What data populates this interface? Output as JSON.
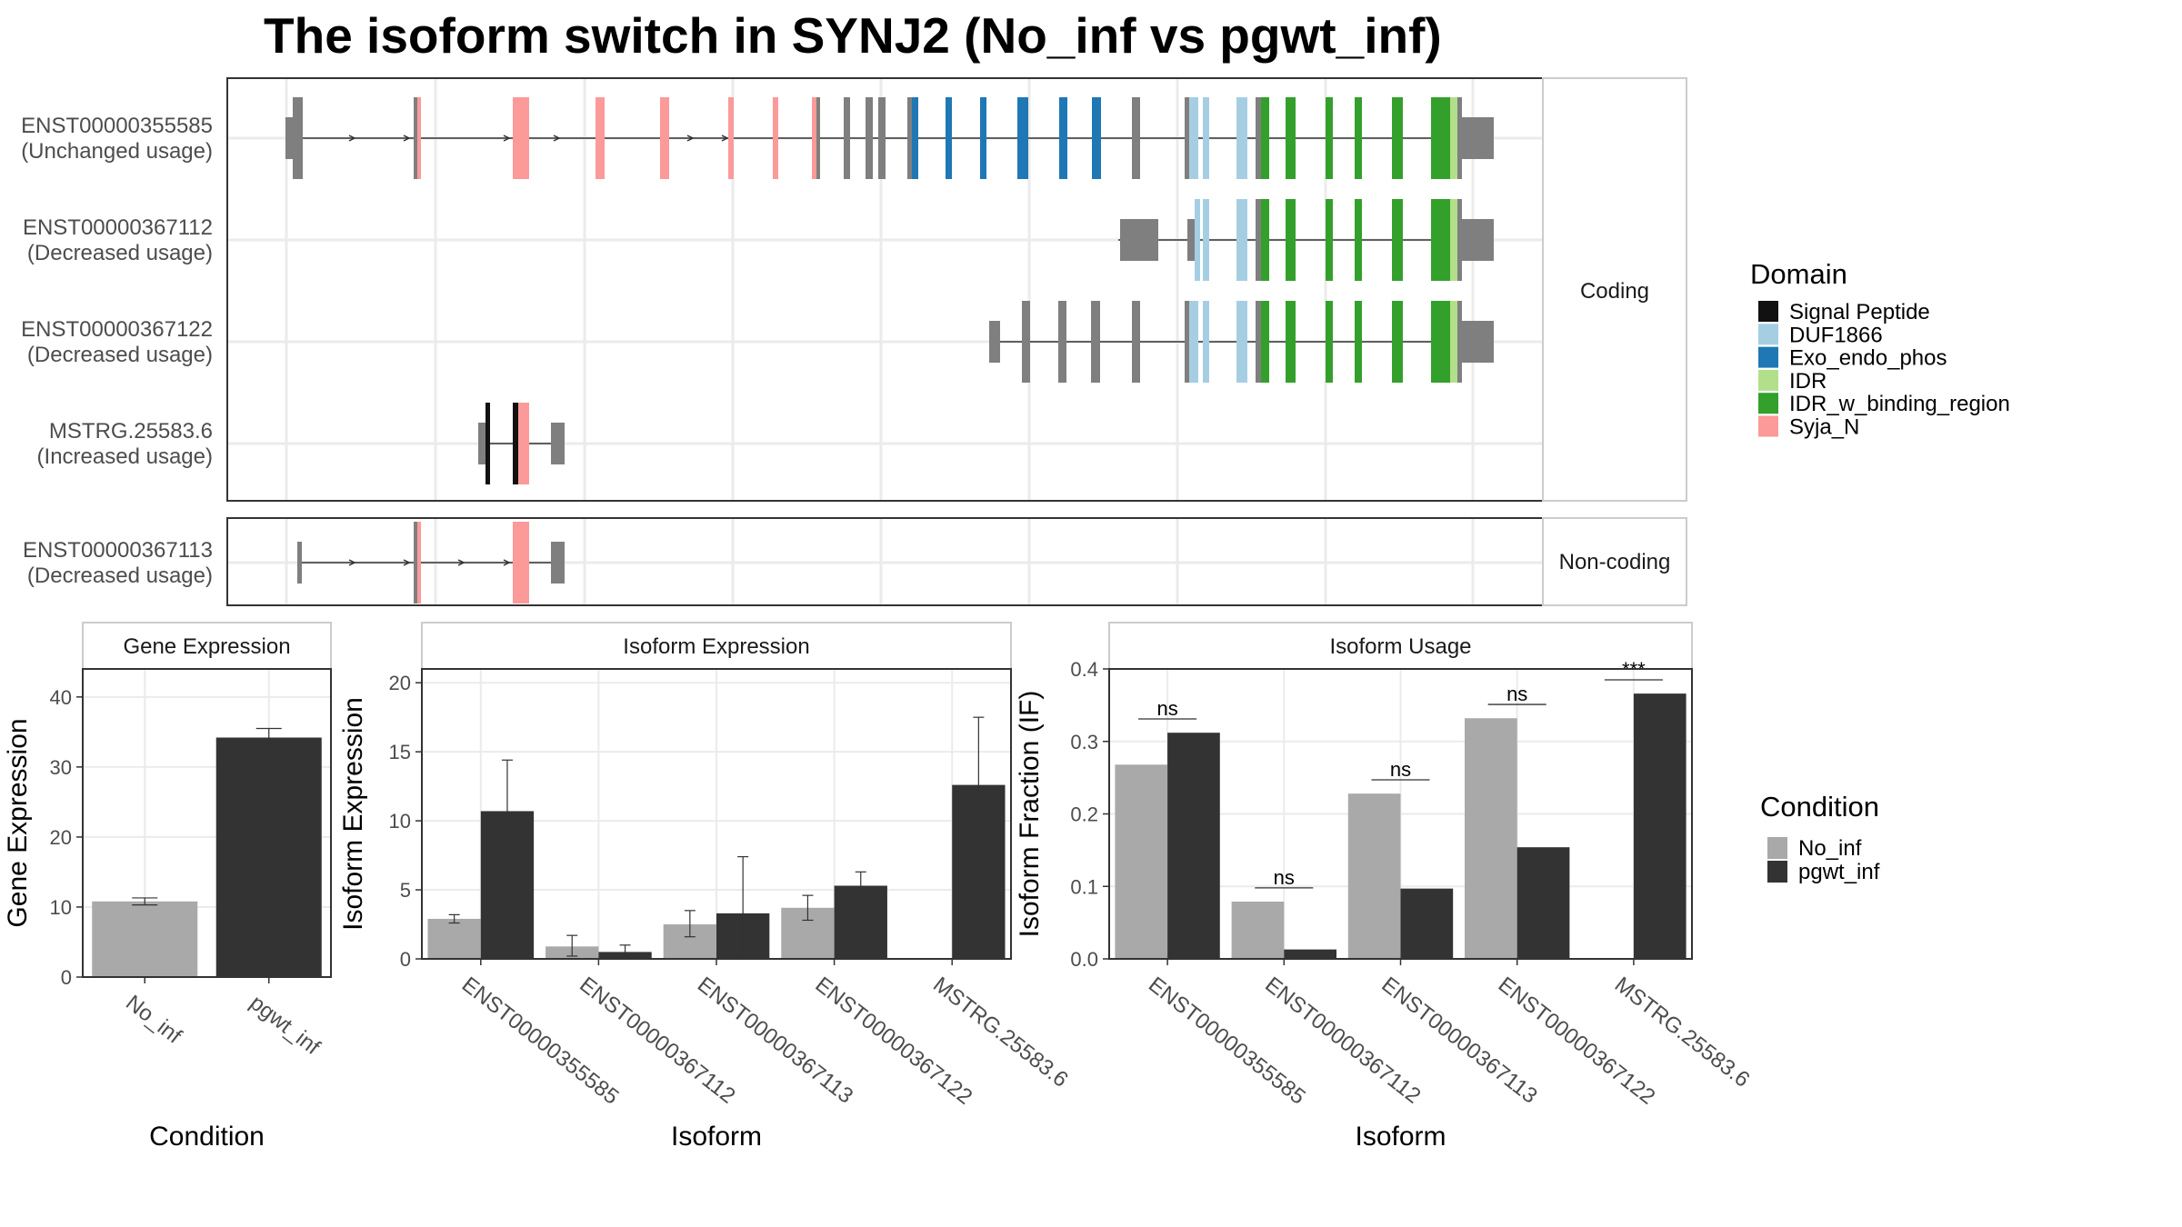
{
  "title": "The isoform switch in SYNJ2 (No_inf vs pgwt_inf)",
  "colors": {
    "intron": "#7f7f7f",
    "utr": "#7f7f7f",
    "signal_peptide": "#111111",
    "duf1866": "#a6cee3",
    "exo_endo_phos": "#1f78b4",
    "idr": "#b2df8a",
    "idr_w_binding_region": "#33a02c",
    "syja_n": "#fb9a99",
    "no_inf": "#a9a9a9",
    "pgwt_inf": "#333333",
    "panel_border": "#333333",
    "strip_border": "#cccccc",
    "grid": "#ebebeb"
  },
  "structure": {
    "coding_panel_label": "Coding",
    "noncoding_panel_label": "Non-coding",
    "coding": [
      {
        "id": "ENST00000355585",
        "usage": "(Unchanged usage)"
      },
      {
        "id": "ENST00000367112",
        "usage": "(Decreased usage)"
      },
      {
        "id": "ENST00000367122",
        "usage": "(Decreased usage)"
      },
      {
        "id": "MSTRG.25583.6",
        "usage": "(Increased usage)"
      }
    ],
    "noncoding": [
      {
        "id": "ENST00000367113",
        "usage": "(Decreased usage)"
      }
    ]
  },
  "legends": {
    "domain_title": "Domain",
    "domain_items": [
      {
        "label": "Signal Peptide",
        "color": "#111111"
      },
      {
        "label": "DUF1866",
        "color": "#a6cee3"
      },
      {
        "label": "Exo_endo_phos",
        "color": "#1f78b4"
      },
      {
        "label": "IDR",
        "color": "#b2df8a"
      },
      {
        "label": "IDR_w_binding_region",
        "color": "#33a02c"
      },
      {
        "label": "Syja_N",
        "color": "#fb9a99"
      }
    ],
    "condition_title": "Condition",
    "condition_items": [
      {
        "label": "No_inf",
        "color": "#a9a9a9"
      },
      {
        "label": "pgwt_inf",
        "color": "#333333"
      }
    ]
  },
  "chart_data": [
    {
      "type": "bar",
      "strip": "Gene Expression",
      "xlabel": "Condition",
      "ylabel": "Gene Expression",
      "ylim": [
        0,
        44
      ],
      "yticks": [
        0,
        10,
        20,
        30,
        40
      ],
      "categories": [
        "No_inf",
        "pgwt_inf"
      ],
      "values": [
        10.8,
        34.2
      ],
      "errors": [
        [
          10.3,
          11.3
        ],
        [
          32.8,
          35.5
        ]
      ]
    },
    {
      "type": "bar",
      "strip": "Isoform Expression",
      "xlabel": "Isoform",
      "ylabel": "Isoform Expression",
      "ylim": [
        0,
        21
      ],
      "yticks": [
        0,
        5,
        10,
        15,
        20
      ],
      "categories": [
        "ENST00000355585",
        "ENST00000367112",
        "ENST00000367113",
        "ENST00000367122",
        "MSTRG.25583.6"
      ],
      "series": [
        {
          "name": "No_inf",
          "values": [
            2.9,
            0.9,
            2.5,
            3.7,
            0.0
          ],
          "errors": [
            [
              2.6,
              3.2
            ],
            [
              0.2,
              1.7
            ],
            [
              1.6,
              3.5
            ],
            [
              2.8,
              4.6
            ],
            [
              0.0,
              0.0
            ]
          ]
        },
        {
          "name": "pgwt_inf",
          "values": [
            10.7,
            0.5,
            3.3,
            5.3,
            12.6
          ],
          "errors": [
            [
              7.1,
              14.4
            ],
            [
              0.1,
              1.0
            ],
            [
              0.1,
              7.4
            ],
            [
              4.3,
              6.3
            ],
            [
              7.7,
              17.5
            ]
          ]
        }
      ]
    },
    {
      "type": "bar",
      "strip": "Isoform Usage",
      "xlabel": "Isoform",
      "ylabel": "Isoform Fraction (IF)",
      "ylim": [
        0,
        0.4
      ],
      "yticks": [
        0.0,
        0.1,
        0.2,
        0.3,
        0.4
      ],
      "yticklabels": [
        "0.0",
        "0.1",
        "0.2",
        "0.3",
        "0.4"
      ],
      "categories": [
        "ENST00000355585",
        "ENST00000367112",
        "ENST00000367113",
        "ENST00000367122",
        "MSTRG.25583.6"
      ],
      "series": [
        {
          "name": "No_inf",
          "values": [
            0.268,
            0.079,
            0.228,
            0.332,
            0.0
          ]
        },
        {
          "name": "pgwt_inf",
          "values": [
            0.312,
            0.013,
            0.097,
            0.154,
            0.366
          ]
        }
      ],
      "significance": [
        {
          "label": "ns",
          "y": 0.331
        },
        {
          "label": "ns",
          "y": 0.098
        },
        {
          "label": "ns",
          "y": 0.247
        },
        {
          "label": "ns",
          "y": 0.351
        },
        {
          "label": "***",
          "y": 0.385
        }
      ]
    }
  ]
}
